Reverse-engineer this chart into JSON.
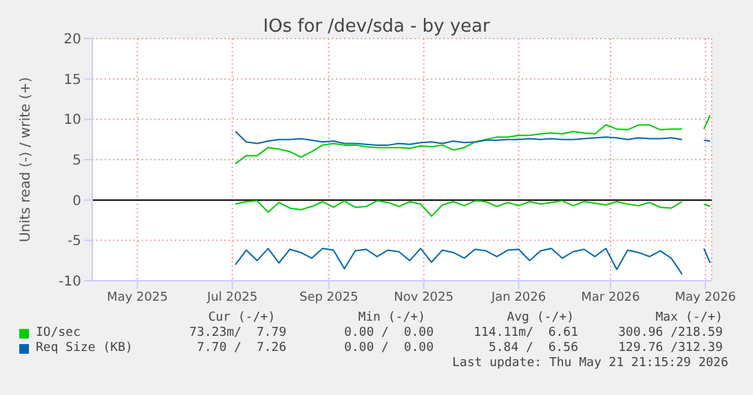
{
  "chart_data": {
    "type": "line",
    "title": "IOs for /dev/sda - by year",
    "ylabel": "Units read (-) / write (+)",
    "x": [
      "2025-07-03",
      "2025-07-10",
      "2025-07-17",
      "2025-07-24",
      "2025-07-31",
      "2025-08-07",
      "2025-08-14",
      "2025-08-21",
      "2025-08-28",
      "2025-09-04",
      "2025-09-11",
      "2025-09-18",
      "2025-09-25",
      "2025-10-02",
      "2025-10-09",
      "2025-10-16",
      "2025-10-23",
      "2025-10-30",
      "2025-11-06",
      "2025-11-13",
      "2025-11-20",
      "2025-11-27",
      "2025-12-04",
      "2025-12-11",
      "2025-12-18",
      "2025-12-25",
      "2026-01-01",
      "2026-01-08",
      "2026-01-15",
      "2026-01-22",
      "2026-01-29",
      "2026-02-05",
      "2026-02-12",
      "2026-02-19",
      "2026-02-26",
      "2026-03-05",
      "2026-03-12",
      "2026-03-19",
      "2026-03-26",
      "2026-04-02",
      "2026-04-09",
      "2026-04-16",
      "2026-04-23",
      "2026-04-30",
      "2026-05-04"
    ],
    "series": [
      {
        "name": "IO/sec",
        "color": "#00cc00",
        "values": [
          4.5,
          5.5,
          5.5,
          6.5,
          6.3,
          6.0,
          5.3,
          6.0,
          6.8,
          7.0,
          6.8,
          6.8,
          6.6,
          6.5,
          6.5,
          6.5,
          6.4,
          6.7,
          6.6,
          6.8,
          6.2,
          6.5,
          7.2,
          7.5,
          7.8,
          7.8,
          8.0,
          8.0,
          8.2,
          8.3,
          8.2,
          8.5,
          8.3,
          8.2,
          9.3,
          8.8,
          8.7,
          9.3,
          9.3,
          8.7,
          8.8,
          8.8,
          null,
          8.8,
          10.5
        ]
      },
      {
        "color": "#00cc00",
        "values": [
          -0.5,
          -0.2,
          -0.1,
          -1.5,
          -0.3,
          -1.0,
          -1.2,
          -0.8,
          -0.2,
          -0.9,
          -0.1,
          -0.9,
          -0.8,
          -0.1,
          -0.3,
          -0.8,
          -0.2,
          -0.5,
          -2.0,
          -0.6,
          -0.2,
          -0.7,
          -0.1,
          -0.2,
          -0.8,
          -0.3,
          -0.7,
          -0.2,
          -0.5,
          -0.3,
          -0.1,
          -0.7,
          -0.2,
          -0.4,
          -0.6,
          -0.2,
          -0.5,
          -0.7,
          -0.3,
          -0.9,
          -1.0,
          -0.2,
          null,
          -0.5,
          -0.8
        ]
      },
      {
        "name": "Req Size (KB)",
        "color": "#0066b3",
        "values": [
          8.5,
          7.2,
          7.0,
          7.3,
          7.5,
          7.5,
          7.6,
          7.4,
          7.2,
          7.3,
          7.0,
          7.0,
          6.9,
          6.8,
          6.8,
          7.0,
          6.9,
          7.1,
          7.2,
          7.0,
          7.3,
          7.1,
          7.2,
          7.4,
          7.4,
          7.5,
          7.5,
          7.6,
          7.5,
          7.6,
          7.5,
          7.5,
          7.6,
          7.7,
          7.8,
          7.7,
          7.5,
          7.7,
          7.6,
          7.6,
          7.7,
          7.5,
          null,
          7.4,
          7.3
        ]
      },
      {
        "color": "#0066b3",
        "values": [
          -8.0,
          -6.2,
          -7.5,
          -6.0,
          -7.8,
          -6.1,
          -6.5,
          -7.2,
          -6.0,
          -6.2,
          -8.5,
          -6.3,
          -6.1,
          -7.0,
          -6.2,
          -6.4,
          -7.5,
          -6.0,
          -7.7,
          -6.2,
          -6.5,
          -7.2,
          -6.1,
          -6.3,
          -7.0,
          -6.2,
          -6.1,
          -7.5,
          -6.3,
          -6.0,
          -7.2,
          -6.4,
          -6.1,
          -7.0,
          -6.0,
          -8.6,
          -6.2,
          -6.5,
          -7.0,
          -6.3,
          -7.2,
          -9.2,
          null,
          -6.0,
          -7.8
        ]
      }
    ],
    "xlim": [
      "2025-04-02",
      "2026-05-05"
    ],
    "xticks": [
      {
        "value": "2025-05-01",
        "label": "May 2025"
      },
      {
        "value": "2025-07-01",
        "label": "Jul 2025"
      },
      {
        "value": "2025-09-01",
        "label": "Sep 2025"
      },
      {
        "value": "2025-11-01",
        "label": "Nov 2025"
      },
      {
        "value": "2026-01-01",
        "label": "Jan 2026"
      },
      {
        "value": "2026-03-01",
        "label": "Mar 2026"
      },
      {
        "value": "2026-05-01",
        "label": "May 2026"
      }
    ],
    "ylim": [
      -10,
      20
    ],
    "yticks": [
      -10,
      -5,
      0,
      5,
      10,
      15,
      20
    ],
    "ref_lines": [
      {
        "axis": "y",
        "value": 0,
        "color": "#000000"
      }
    ],
    "grid": true,
    "legend": "bottom",
    "marker": "none",
    "line_style": "solid",
    "annotations": [
      "Cur (-/+)",
      "Min (-/+)",
      "Avg (-/+)",
      "Max (-/+)",
      "73.23m/  7.79",
      "0.00 /  0.00",
      "114.11m/  6.61",
      "300.96 /218.59",
      "7.70 /  7.26",
      "0.00 /  0.00",
      "5.84 /  6.56",
      "129.76 /312.39",
      "Last update: Thu May 21 21:15:29 2026"
    ]
  }
}
